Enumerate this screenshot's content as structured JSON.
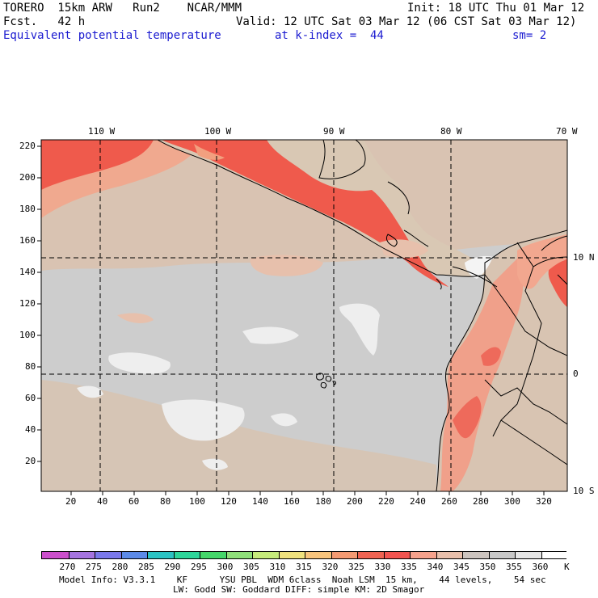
{
  "header": {
    "line1_left": "TORERO  15km ARW   Run2    NCAR/MMM",
    "line1_right": "Init: 18 UTC Thu 01 Mar 12",
    "line2_left": "Fcst.   42 h",
    "line2_right": "Valid: 12 UTC Sat 03 Mar 12 (06 CST Sat 03 Mar 12)",
    "line3_field": "Equivalent potential temperature",
    "line3_level": "at k-index =  44",
    "line3_sm": "sm= 2"
  },
  "map": {
    "lon_labels": [
      "110 W",
      "100 W",
      "90 W",
      "80 W",
      "70 W"
    ],
    "lat_labels": [
      "10 N",
      "0",
      "10 S"
    ],
    "y_ticks": [
      "220",
      "200",
      "180",
      "160",
      "140",
      "120",
      "100",
      "80",
      "60",
      "40",
      "20"
    ],
    "x_ticks": [
      "20",
      "40",
      "60",
      "80",
      "100",
      "120",
      "140",
      "160",
      "180",
      "200",
      "220",
      "240",
      "260",
      "280",
      "300",
      "320"
    ],
    "ocean_color": "#cdcdcd",
    "land_color": "#d9c8b4"
  },
  "colorbar": {
    "labels": [
      "270",
      "275",
      "280",
      "285",
      "290",
      "295",
      "300",
      "305",
      "310",
      "315",
      "320",
      "325",
      "330",
      "335",
      "340",
      "345",
      "350",
      "355",
      "360"
    ],
    "unit": "K",
    "colors": [
      "#cc4fcc",
      "#a574e0",
      "#7a78ea",
      "#5c8ae8",
      "#2cc3c3",
      "#2ed69a",
      "#45d76a",
      "#8fe07a",
      "#c6eb7b",
      "#f0e27e",
      "#f8c47c",
      "#f49a72",
      "#f06352",
      "#f25450",
      "#f6a28c",
      "#e9c0ac",
      "#ccc4bf",
      "#c8c8c8",
      "#e6e6e6",
      "#ffffff"
    ]
  },
  "footer": {
    "line1": "Model Info: V3.3.1    KF      YSU PBL  WDM 6class  Noah LSM  15 km,    44 levels,    54 sec",
    "line2": "LW: Godd SW: Goddard DIFF: simple KM: 2D Smagor"
  }
}
